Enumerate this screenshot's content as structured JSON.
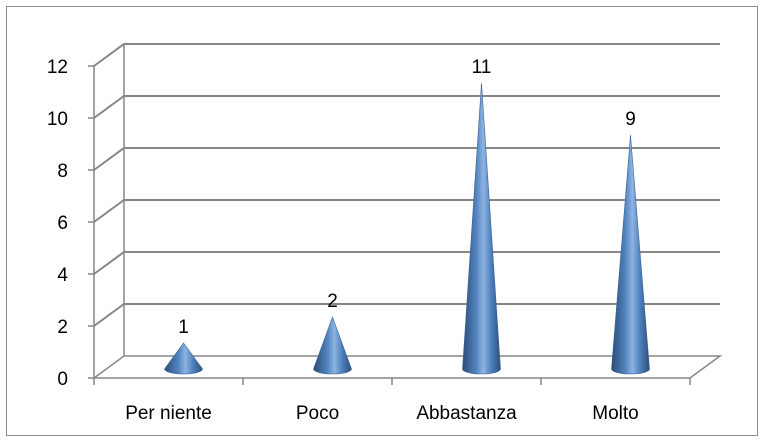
{
  "chart_data": {
    "type": "bar",
    "style": "3d-cone",
    "categories": [
      "Per niente",
      "Poco",
      "Abbastanza",
      "Molto"
    ],
    "values": [
      1,
      2,
      11,
      9
    ],
    "data_labels": [
      "1",
      "2",
      "11",
      "9"
    ],
    "title": "",
    "xlabel": "",
    "ylabel": "",
    "ylim": [
      0,
      12
    ],
    "yticks": [
      0,
      2,
      4,
      6,
      8,
      10,
      12
    ],
    "grid": true,
    "legend": "none",
    "colors": {
      "bar": "#4f81bd",
      "bar_dark": "#2c4d75",
      "bar_light": "#9dc3e6",
      "grid": "#868686"
    }
  }
}
